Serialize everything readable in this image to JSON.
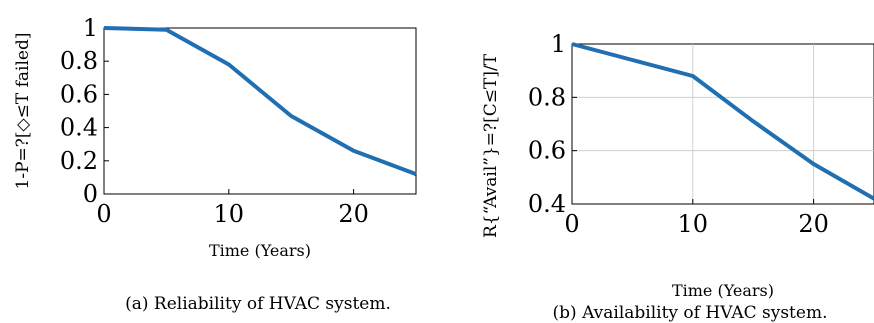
{
  "chart_data": [
    {
      "type": "line",
      "x": [
        0,
        5,
        10,
        15,
        20,
        25
      ],
      "series": [
        {
          "values": [
            1.0,
            0.99,
            0.78,
            0.47,
            0.26,
            0.12
          ],
          "color": "#1f6fb2"
        }
      ],
      "xlim": [
        0,
        25
      ],
      "ylim": [
        0,
        1
      ],
      "xticks": [
        "0",
        "10",
        "20"
      ],
      "yticks": [
        "0",
        "0.2",
        "0.4",
        "0.6",
        "0.8",
        "1"
      ],
      "xlabel": "Time (Years)",
      "ylabel": "1-P=?[◇≤T failed]",
      "caption": "(a) Reliability of HVAC system.",
      "grid": false
    },
    {
      "type": "line",
      "x": [
        0,
        5,
        10,
        15,
        20,
        25
      ],
      "series": [
        {
          "values": [
            1.0,
            0.94,
            0.88,
            0.71,
            0.55,
            0.42
          ],
          "color": "#1f6fb2"
        }
      ],
      "xlim": [
        0,
        25
      ],
      "ylim": [
        0.4,
        1
      ],
      "xticks": [
        "0",
        "10",
        "20"
      ],
      "yticks": [
        "0.4",
        "0.6",
        "0.8",
        "1"
      ],
      "xlabel": "Time (Years)",
      "ylabel": "R{“Avail”}=?[C≤T]/T",
      "caption": "(b) Availability of HVAC system.",
      "grid": true
    }
  ]
}
